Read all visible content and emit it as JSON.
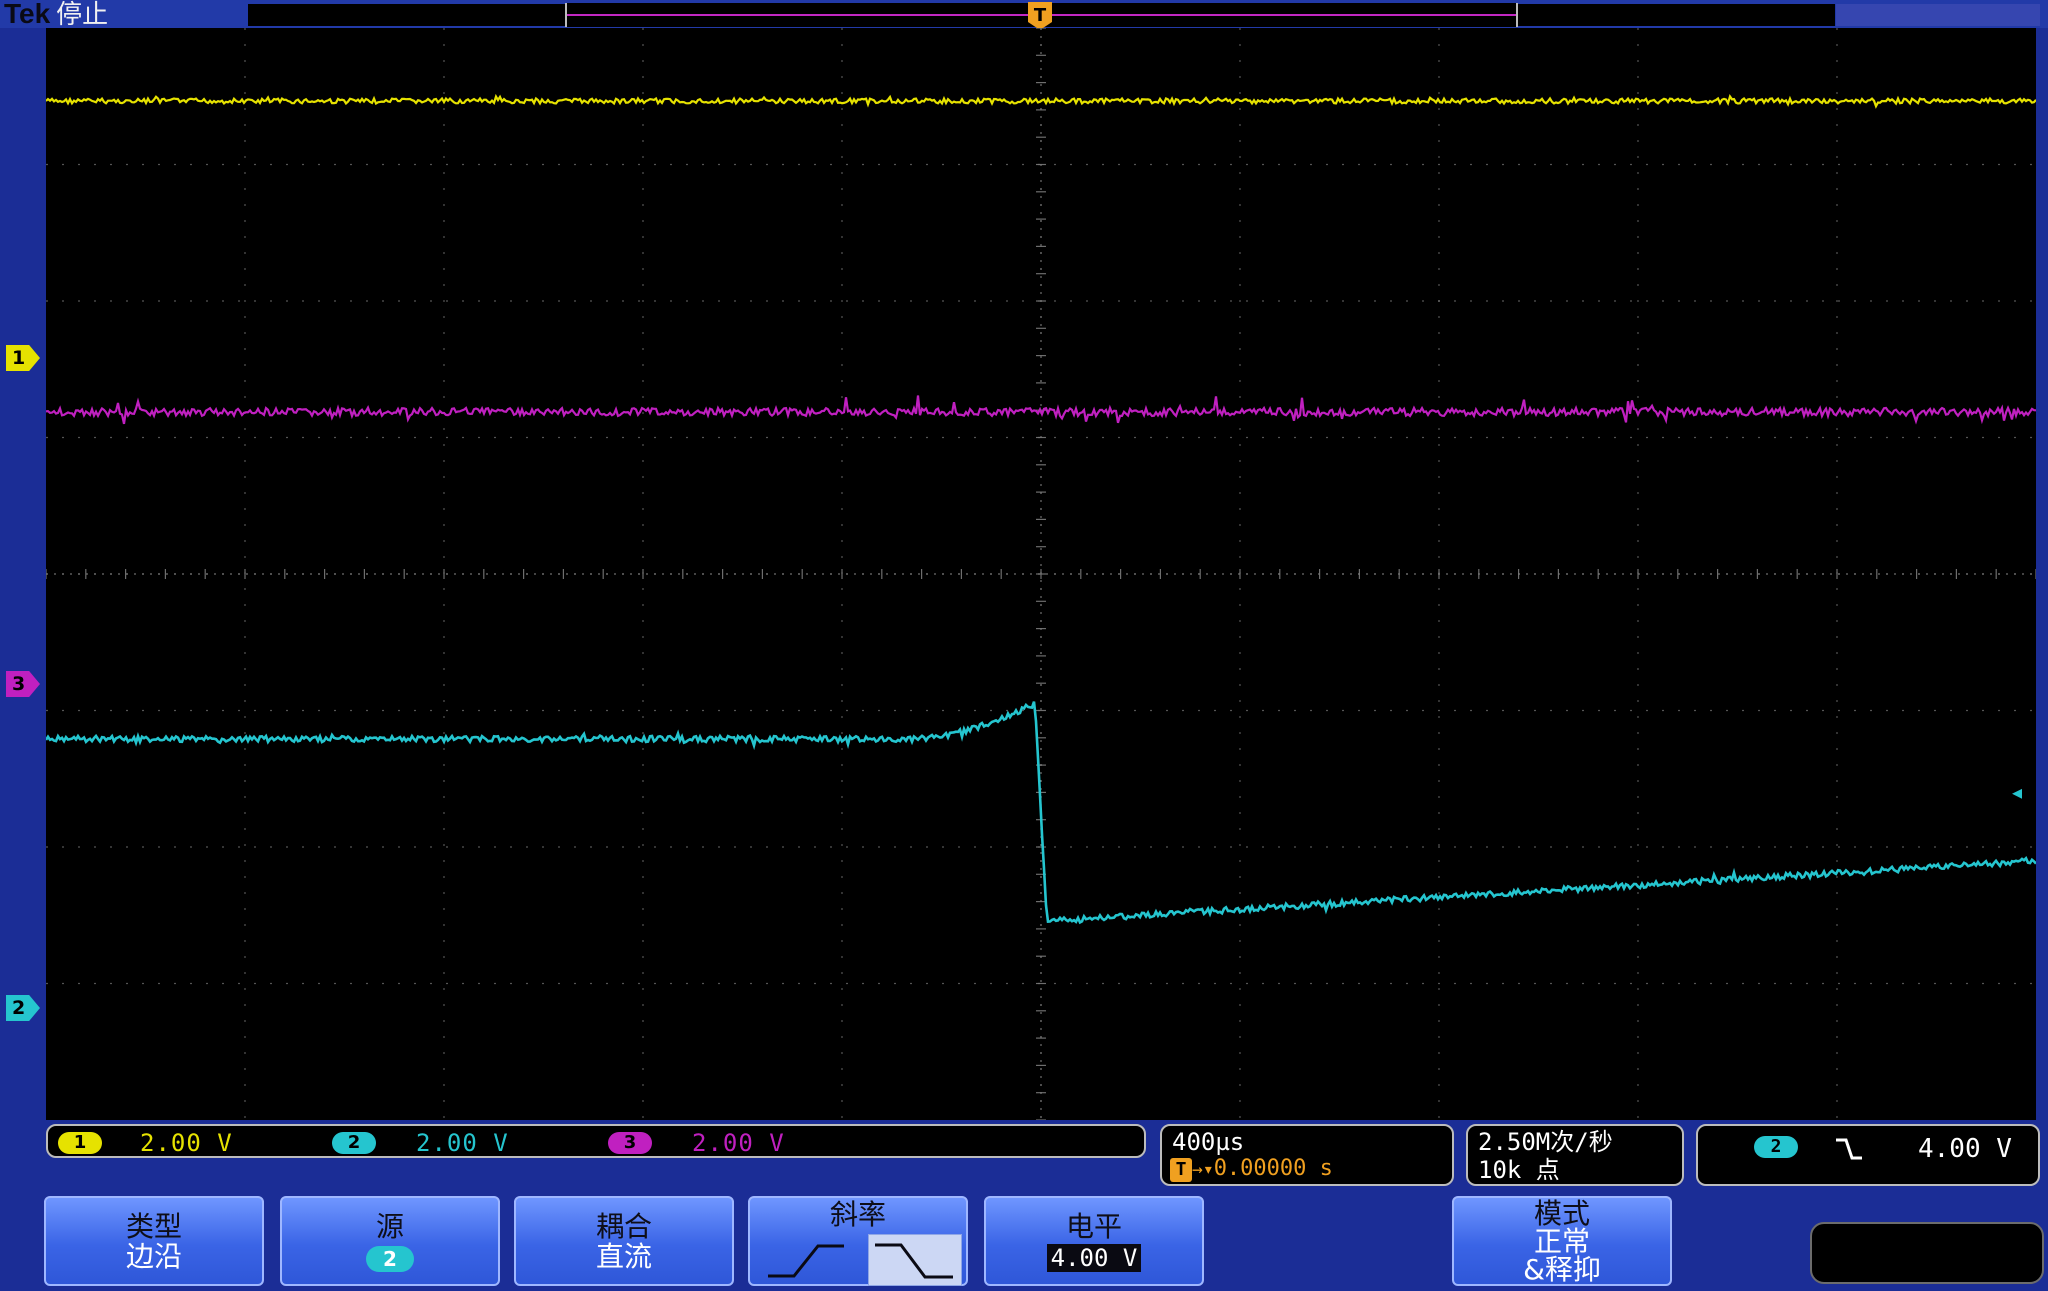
{
  "header": {
    "brand": "Tek",
    "acq_state": "停止"
  },
  "markers": {
    "ch1": "1",
    "ch2": "2",
    "ch3": "3",
    "trigger_position": "T"
  },
  "readout": {
    "ch1": {
      "num": "1",
      "scale": "2.00 V",
      "color": "#e6e200"
    },
    "ch2": {
      "num": "2",
      "scale": "2.00 V",
      "color": "#25c5cf"
    },
    "ch3": {
      "num": "3",
      "scale": "2.00 V",
      "color": "#c020c0"
    }
  },
  "timebase": {
    "scale": "400µs",
    "position": "0.00000 s"
  },
  "acquisition": {
    "rate": "2.50M次/秒",
    "record_length": "10k 点"
  },
  "trigger": {
    "source": "2",
    "slope_icon": "falling-edge-icon",
    "level": "4.00 V"
  },
  "menu": {
    "type": {
      "label": "类型",
      "value": "边沿"
    },
    "source": {
      "label": "源",
      "value": "2"
    },
    "coupling": {
      "label": "耦合",
      "value": "直流"
    },
    "slope": {
      "label": "斜率"
    },
    "level": {
      "label": "电平",
      "value": "4.00 V"
    },
    "mode": {
      "label": "模式",
      "value": "正常",
      "value2": "&释抑"
    }
  },
  "colors": {
    "ch1": "#e6e200",
    "ch2": "#25c5cf",
    "ch3": "#c020c0",
    "trigger": "#f0a020",
    "softkey": "#3a64e6"
  }
}
